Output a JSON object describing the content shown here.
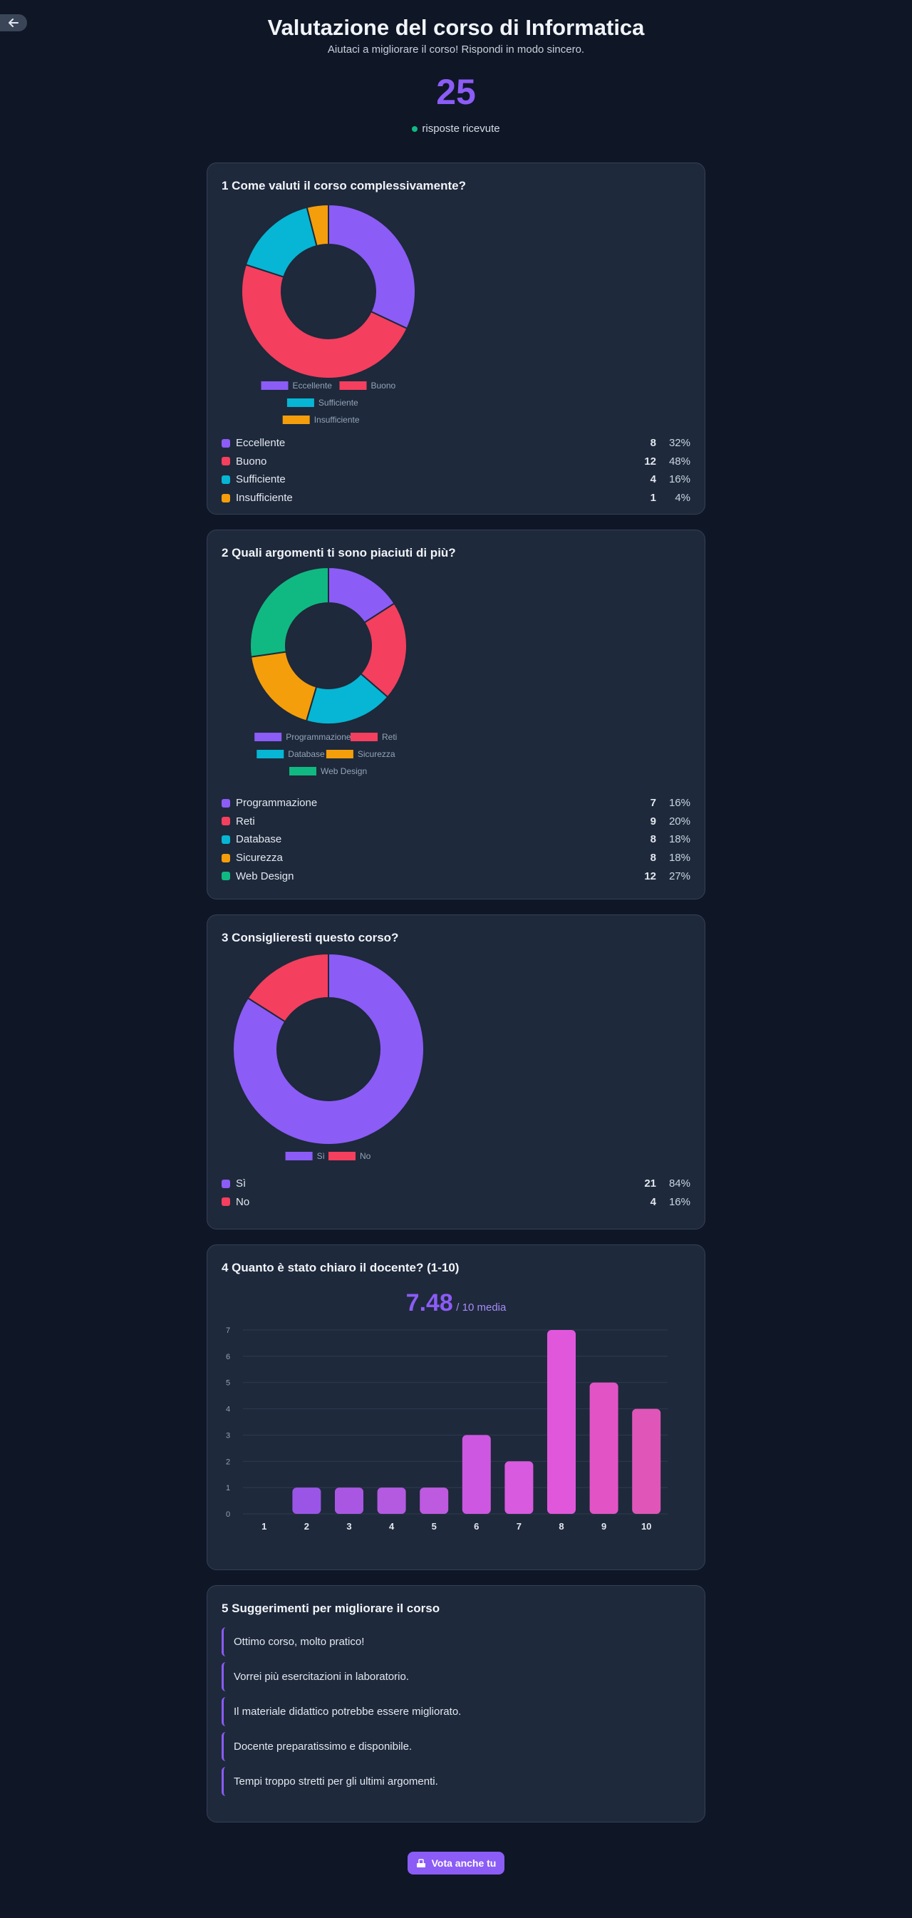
{
  "header": {
    "title": "Valutazione del corso di Informatica",
    "subtitle": "Aiutaci a migliorare il corso! Rispondi in modo sincero.",
    "response_count": "25",
    "response_label": "risposte ricevute"
  },
  "colors": {
    "purple": "#8b5cf6",
    "red": "#f43f5e",
    "cyan": "#06b6d4",
    "orange": "#f59e0b",
    "green": "#10b981",
    "pink": "#e255d3"
  },
  "q1": {
    "title": "1 Come valuti il corso complessivamente?",
    "chart_data": {
      "type": "pie",
      "categories": [
        "Eccellente",
        "Buono",
        "Sufficiente",
        "Insufficiente"
      ],
      "values": [
        8,
        12,
        4,
        1
      ],
      "colors": [
        "#8b5cf6",
        "#f43f5e",
        "#06b6d4",
        "#f59e0b"
      ]
    },
    "rows": [
      {
        "label": "Eccellente",
        "count": "8",
        "pct": "32%"
      },
      {
        "label": "Buono",
        "count": "12",
        "pct": "48%"
      },
      {
        "label": "Sufficiente",
        "count": "4",
        "pct": "16%"
      },
      {
        "label": "Insufficiente",
        "count": "1",
        "pct": "4%"
      }
    ]
  },
  "q2": {
    "title": "2 Quali argomenti ti sono piaciuti di più?",
    "chart_data": {
      "type": "pie",
      "categories": [
        "Programmazione",
        "Reti",
        "Database",
        "Sicurezza",
        "Web Design"
      ],
      "values": [
        7,
        9,
        8,
        8,
        12
      ],
      "colors": [
        "#8b5cf6",
        "#f43f5e",
        "#06b6d4",
        "#f59e0b",
        "#10b981"
      ]
    },
    "rows": [
      {
        "label": "Programmazione",
        "count": "7",
        "pct": "16%"
      },
      {
        "label": "Reti",
        "count": "9",
        "pct": "20%"
      },
      {
        "label": "Database",
        "count": "8",
        "pct": "18%"
      },
      {
        "label": "Sicurezza",
        "count": "8",
        "pct": "18%"
      },
      {
        "label": "Web Design",
        "count": "12",
        "pct": "27%"
      }
    ]
  },
  "q3": {
    "title": "3 Consiglieresti questo corso?",
    "chart_data": {
      "type": "pie",
      "categories": [
        "Sì",
        "No"
      ],
      "values": [
        21,
        4
      ],
      "colors": [
        "#8b5cf6",
        "#f43f5e"
      ]
    },
    "rows": [
      {
        "label": "Sì",
        "count": "21",
        "pct": "84%"
      },
      {
        "label": "No",
        "count": "4",
        "pct": "16%"
      }
    ]
  },
  "q4": {
    "title": "4 Quanto è stato chiaro il docente? (1-10)",
    "average": "7.48",
    "average_suffix": "/ 10 media",
    "chart_data": {
      "type": "bar",
      "categories": [
        "1",
        "2",
        "3",
        "4",
        "5",
        "6",
        "7",
        "8",
        "9",
        "10"
      ],
      "values": [
        0,
        1,
        1,
        1,
        1,
        3,
        2,
        7,
        5,
        4
      ],
      "ylim": [
        0,
        7
      ],
      "yticks": [
        "0",
        "1",
        "2",
        "3",
        "4",
        "5",
        "6",
        "7"
      ]
    }
  },
  "q5": {
    "title": "5 Suggerimenti per migliorare il corso",
    "suggestions": [
      "Ottimo corso, molto pratico!",
      "Vorrei più esercitazioni in laboratorio.",
      "Il materiale didattico potrebbe essere migliorato.",
      "Docente preparatissimo e disponibile.",
      "Tempi troppo stretti per gli ultimi argomenti."
    ]
  },
  "footer": {
    "vote_label": "Vota anche tu"
  }
}
